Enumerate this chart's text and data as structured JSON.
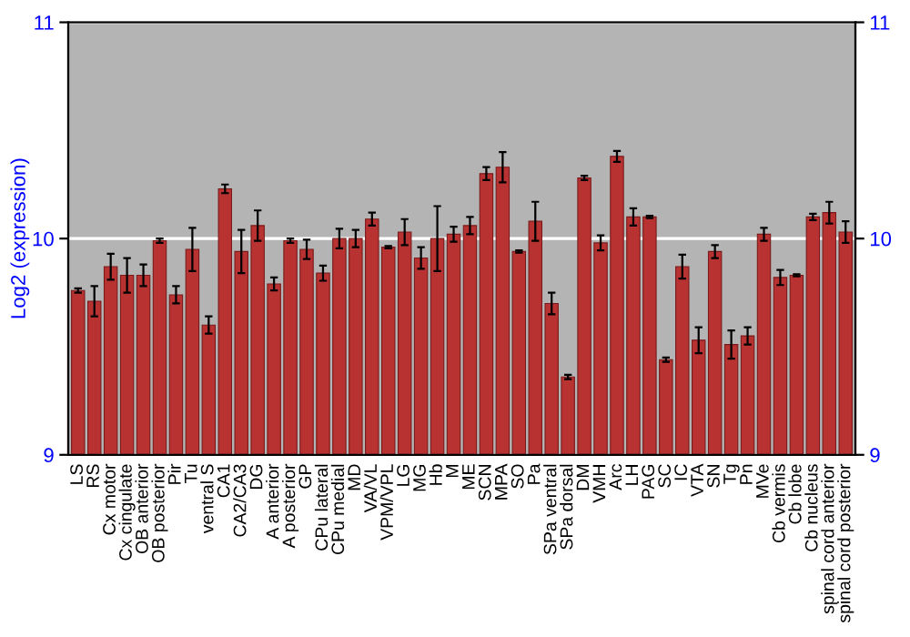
{
  "chart_data": {
    "type": "bar",
    "ylabel": "Log2 (expression)",
    "categories": [
      "LS",
      "RS",
      "Cx motor",
      "Cx cingulate",
      "OB anterior",
      "OB posterior",
      "Pir",
      "Tu",
      "ventral S",
      "CA1",
      "CA2/CA3",
      "DG",
      "A anterior",
      "A posterior",
      "GP",
      "CPu lateral",
      "CPu medial",
      "MD",
      "VA/VL",
      "VPM/VPL",
      "LG",
      "MG",
      "Hb",
      "M",
      "ME",
      "SCN",
      "MPA",
      "SO",
      "Pa",
      "SPa ventral",
      "SPa dorsal",
      "DM",
      "VMH",
      "Arc",
      "LH",
      "PAG",
      "SC",
      "IC",
      "VTA",
      "SN",
      "Tg",
      "Pn",
      "MVe",
      "Cb vermis",
      "Cb lobe",
      "Cb nucleus",
      "spinal cord anterior",
      "spinal cord posterior"
    ],
    "values": [
      9.76,
      9.71,
      9.87,
      9.83,
      9.83,
      9.99,
      9.74,
      9.95,
      9.6,
      10.23,
      9.94,
      10.06,
      9.79,
      9.99,
      9.95,
      9.84,
      10.0,
      10.0,
      10.09,
      9.96,
      10.03,
      9.91,
      10.0,
      10.02,
      10.06,
      10.3,
      10.33,
      9.94,
      10.08,
      9.7,
      9.36,
      10.28,
      9.98,
      10.38,
      10.1,
      10.1,
      9.44,
      9.87,
      9.53,
      9.94,
      9.51,
      9.55,
      10.02,
      9.82,
      9.83,
      10.1,
      10.12,
      10.03
    ],
    "errors": [
      0.01,
      0.07,
      0.06,
      0.08,
      0.05,
      0.01,
      0.04,
      0.1,
      0.04,
      0.02,
      0.1,
      0.07,
      0.03,
      0.01,
      0.045,
      0.035,
      0.045,
      0.04,
      0.03,
      0.005,
      0.06,
      0.05,
      0.15,
      0.035,
      0.04,
      0.03,
      0.07,
      0.005,
      0.09,
      0.05,
      0.01,
      0.01,
      0.035,
      0.025,
      0.04,
      0.005,
      0.01,
      0.055,
      0.06,
      0.03,
      0.065,
      0.04,
      0.03,
      0.035,
      0.005,
      0.015,
      0.05,
      0.05
    ],
    "color": "#b83232",
    "ylim": [
      9,
      11
    ],
    "yticks": [
      9,
      10,
      11
    ],
    "y2lim": [
      9,
      11
    ],
    "y2ticks": [
      9,
      10,
      11
    ],
    "grid": "y"
  }
}
